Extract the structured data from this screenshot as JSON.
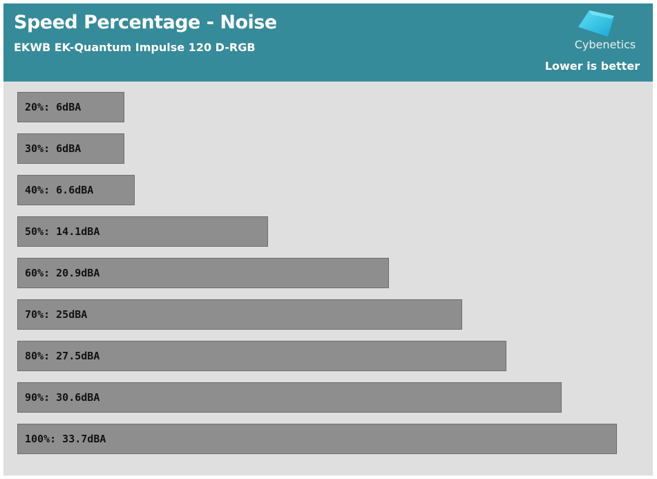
{
  "header": {
    "title": "Speed Percentage - Noise",
    "subtitle": "EKWB EK-Quantum Impulse 120 D-RGB",
    "brand": "Cybenetics",
    "note": "Lower is better",
    "logo_icon": "cybenetics-logo-icon"
  },
  "colors": {
    "header_bg": "#368b9a",
    "plot_bg": "#dfdfdf",
    "bar": "#8e8e8e",
    "logo_fill": "#2ec5e0"
  },
  "chart_data": {
    "type": "bar",
    "orientation": "horizontal",
    "title": "Speed Percentage - Noise",
    "subtitle": "EKWB EK-Quantum Impulse 120 D-RGB",
    "annotation": "Lower is better",
    "categories": [
      "20%",
      "30%",
      "40%",
      "50%",
      "60%",
      "70%",
      "80%",
      "90%",
      "100%"
    ],
    "values": [
      6,
      6,
      6.6,
      14.1,
      20.9,
      25,
      27.5,
      30.6,
      33.7
    ],
    "unit": "dBA",
    "labels": [
      "20%: 6dBA",
      "30%: 6dBA",
      "40%: 6.6dBA",
      "50%: 14.1dBA",
      "60%: 20.9dBA",
      "70%: 25dBA",
      "80%: 27.5dBA",
      "90%: 30.6dBA",
      "100%: 33.7dBA"
    ],
    "grid": false,
    "legend": "none"
  }
}
